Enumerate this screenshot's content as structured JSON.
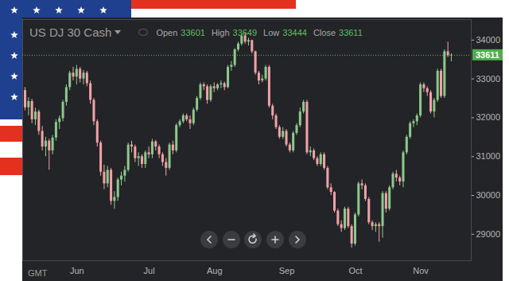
{
  "chart_data": {
    "type": "candlestick",
    "title": "US DJ 30 Cash",
    "ohlc_header": {
      "labels": [
        "Open",
        "High",
        "Low",
        "Close"
      ],
      "values": [
        33601,
        33649,
        33444,
        33611
      ]
    },
    "current_price": 33611,
    "timezone_label": "GMT",
    "categories": [
      null,
      null,
      null,
      null,
      null,
      null,
      null,
      null,
      null,
      null,
      null,
      null,
      null,
      null,
      null,
      "Jun",
      null,
      null,
      null,
      null,
      null,
      null,
      null,
      null,
      null,
      null,
      null,
      null,
      null,
      null,
      null,
      null,
      null,
      null,
      null,
      null,
      "Jul",
      null,
      null,
      null,
      null,
      null,
      null,
      null,
      null,
      null,
      null,
      null,
      null,
      null,
      null,
      null,
      null,
      null,
      null,
      "Aug",
      null,
      null,
      null,
      null,
      null,
      null,
      null,
      null,
      null,
      null,
      null,
      null,
      null,
      null,
      null,
      null,
      null,
      null,
      null,
      null,
      "Sep",
      null,
      null,
      null,
      null,
      null,
      null,
      null,
      null,
      null,
      null,
      null,
      null,
      null,
      null,
      null,
      null,
      null,
      null,
      null,
      "Oct",
      null,
      null,
      null,
      null,
      null,
      null,
      null,
      null,
      null,
      null,
      null,
      null,
      null,
      null,
      null,
      null,
      null,
      null,
      "Nov",
      null,
      null,
      null,
      null,
      null,
      null,
      null,
      null,
      null
    ],
    "open": [
      32700,
      32260,
      32420,
      31950,
      32150,
      31650,
      31250,
      31400,
      31150,
      31480,
      31880,
      31980,
      32400,
      32780,
      33150,
      33050,
      33250,
      33000,
      33150,
      32880,
      32450,
      31900,
      31350,
      30600,
      30300,
      30650,
      29850,
      29950,
      30400,
      30500,
      30650,
      31300,
      31250,
      30950,
      31000,
      30800,
      31100,
      31050,
      31380,
      31250,
      31050,
      30850,
      30700,
      31300,
      31150,
      31800,
      31900,
      32050,
      31950,
      31850,
      32200,
      32500,
      32850,
      32800,
      32450,
      32800,
      32750,
      32850,
      32880,
      32780,
      33300,
      33350,
      33750,
      33900,
      34100,
      33950,
      33990,
      33700,
      33150,
      32950,
      33000,
      33300,
      32300,
      32050,
      31750,
      31500,
      31650,
      31300,
      31150,
      31600,
      31800,
      32150,
      32400,
      31100,
      31150,
      30950,
      30800,
      31050,
      30700,
      30200,
      30080,
      29600,
      29250,
      29150,
      29650,
      29200,
      28750,
      29500,
      30300,
      30250,
      29900,
      29300,
      29200,
      29250,
      29200,
      30050,
      29650,
      30200,
      30550,
      30450,
      30350,
      31100,
      31500,
      31850,
      31900,
      32050,
      32850,
      32750,
      32650,
      32150,
      32450,
      33200,
      32550,
      33700,
      33601
    ],
    "high": [
      32780,
      32520,
      32480,
      32250,
      32200,
      31780,
      31500,
      31450,
      31550,
      31950,
      32050,
      32450,
      32850,
      33200,
      33300,
      33350,
      33300,
      33220,
      33200,
      32950,
      32500,
      31950,
      31400,
      30780,
      30750,
      30700,
      30100,
      30450,
      30600,
      30750,
      31350,
      31400,
      31300,
      31100,
      31050,
      31150,
      31250,
      31450,
      31420,
      31300,
      31100,
      30950,
      31350,
      31400,
      31850,
      31950,
      32100,
      32100,
      32050,
      32250,
      32550,
      32900,
      32900,
      32850,
      32850,
      32900,
      32880,
      32950,
      32920,
      33350,
      33450,
      33780,
      33950,
      34150,
      34180,
      34050,
      34000,
      33720,
      33200,
      33100,
      33350,
      33350,
      32350,
      32100,
      31800,
      31750,
      31700,
      31350,
      31650,
      31850,
      32250,
      32450,
      32450,
      31250,
      31200,
      31000,
      31100,
      31100,
      30750,
      30300,
      30100,
      29650,
      29350,
      29700,
      29700,
      29250,
      29550,
      30350,
      30400,
      30300,
      29950,
      29350,
      29300,
      29300,
      30100,
      30100,
      30250,
      30600,
      30650,
      30500,
      31150,
      31550,
      31900,
      31950,
      32100,
      32900,
      32900,
      32800,
      32700,
      32500,
      33250,
      33250,
      33750,
      33950,
      33649
    ],
    "low": [
      32180,
      32050,
      31850,
      31800,
      31550,
      31150,
      31000,
      30650,
      31050,
      31400,
      31700,
      31900,
      32300,
      32700,
      32950,
      32850,
      32900,
      32850,
      32800,
      32350,
      31800,
      31250,
      30500,
      30150,
      30200,
      29750,
      29650,
      29850,
      30250,
      30350,
      30600,
      31100,
      30850,
      30750,
      30700,
      30700,
      30950,
      30950,
      31150,
      30950,
      30750,
      30500,
      30650,
      31050,
      31100,
      31750,
      31850,
      31900,
      31700,
      31800,
      32150,
      32450,
      32700,
      32350,
      32400,
      32650,
      32700,
      32750,
      32700,
      32750,
      33200,
      33300,
      33700,
      33850,
      33900,
      33850,
      33650,
      33100,
      32850,
      32900,
      32950,
      32250,
      31950,
      31700,
      31450,
      31450,
      31250,
      31100,
      31100,
      31550,
      31750,
      32100,
      31050,
      31000,
      30900,
      30750,
      30750,
      30650,
      30150,
      30000,
      29550,
      29200,
      29050,
      29100,
      29150,
      28650,
      28700,
      29450,
      30150,
      29850,
      29250,
      29100,
      29050,
      28800,
      28900,
      29550,
      29600,
      30150,
      30350,
      30250,
      30200,
      31050,
      31450,
      31750,
      31800,
      32000,
      32650,
      32550,
      32100,
      32000,
      32400,
      32500,
      32500,
      33550,
      33444
    ],
    "close": [
      32260,
      32420,
      31950,
      32150,
      31650,
      31250,
      31400,
      31150,
      31480,
      31880,
      31980,
      32400,
      32780,
      33150,
      33050,
      33250,
      33000,
      33150,
      32880,
      32450,
      31900,
      31350,
      30600,
      30300,
      30650,
      29850,
      29950,
      30400,
      30500,
      30650,
      31300,
      31250,
      30950,
      31000,
      30800,
      31100,
      31050,
      31380,
      31250,
      31050,
      30850,
      30700,
      31300,
      31150,
      31800,
      31900,
      32050,
      31950,
      31850,
      32200,
      32500,
      32850,
      32800,
      32450,
      32800,
      32750,
      32850,
      32880,
      32780,
      33300,
      33350,
      33750,
      33900,
      34100,
      33950,
      33990,
      33700,
      33150,
      32950,
      33000,
      33300,
      32300,
      32050,
      31750,
      31500,
      31650,
      31300,
      31150,
      31600,
      31800,
      32150,
      32400,
      31100,
      31150,
      30950,
      30800,
      31050,
      30700,
      30200,
      30080,
      29600,
      29250,
      29150,
      29650,
      29200,
      28750,
      29500,
      30300,
      30250,
      29900,
      29300,
      29200,
      29250,
      29200,
      30050,
      29650,
      30200,
      30550,
      30450,
      30350,
      31100,
      31500,
      31850,
      31900,
      32050,
      32850,
      32750,
      32650,
      32150,
      32450,
      33200,
      32550,
      33700,
      33601,
      33611
    ],
    "color": {
      "up": "#8cc98c",
      "down": "#f0a2a6"
    },
    "ylim": [
      28320,
      34530
    ],
    "yticks": [
      29000,
      30000,
      31000,
      32000,
      33000,
      34000
    ],
    "grid": false
  }
}
